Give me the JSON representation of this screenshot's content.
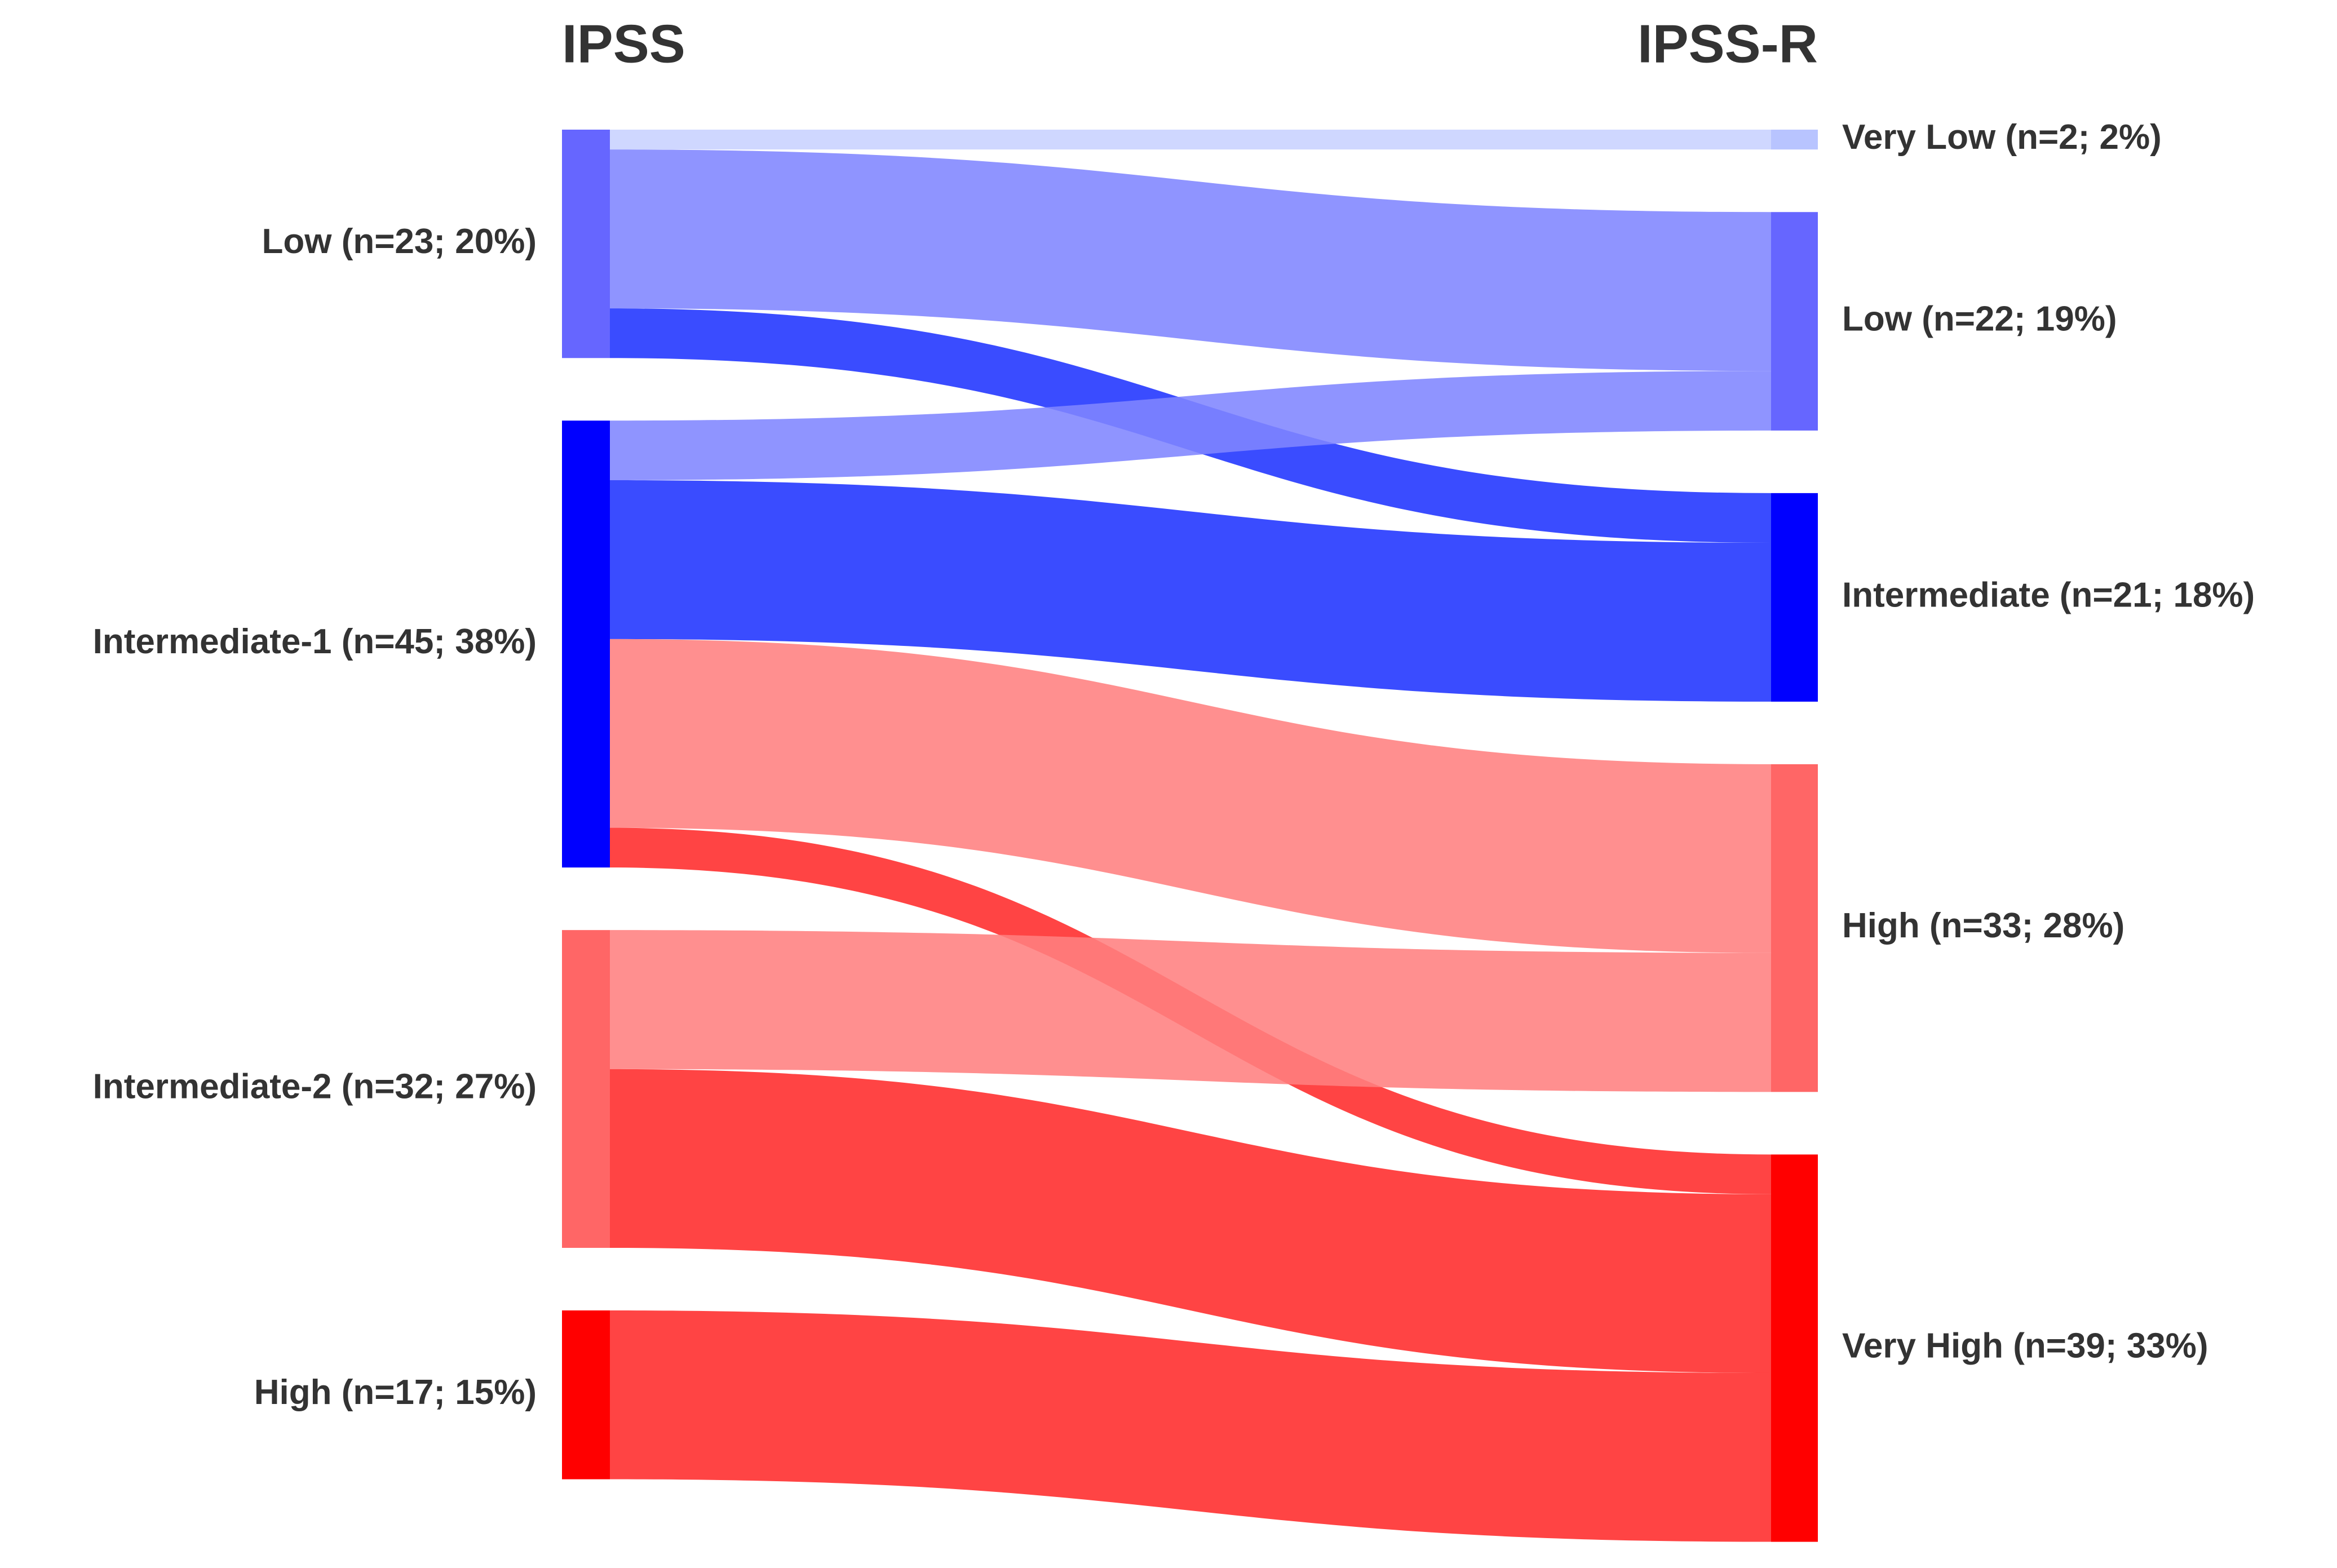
{
  "chart_data": {
    "type": "sankey",
    "left_title": "IPSS",
    "right_title": "IPSS-R",
    "left_nodes": [
      {
        "label": "Low (n=23; 20%)",
        "color": "#6666ff"
      },
      {
        "label": "Intermediate-1 (n=45; 38%)",
        "color": "#0000ff"
      },
      {
        "label": "Intermediate-2 (n=32; 27%)",
        "color": "#ff6666"
      },
      {
        "label": "High (n=17; 15%)",
        "color": "#ff0000"
      }
    ],
    "right_nodes": [
      {
        "label": "Very Low (n=2; 2%)",
        "color": "#b8c4ff",
        "link_color": "#c8d2ff"
      },
      {
        "label": "Low (n=22; 19%)",
        "color": "#6666ff",
        "link_color": "#8085ff"
      },
      {
        "label": "Intermediate (n=21; 18%)",
        "color": "#0000ff",
        "link_color": "#1f33ff"
      },
      {
        "label": "High (n=33; 28%)",
        "color": "#ff6666",
        "link_color": "#ff7f7f"
      },
      {
        "label": "Very High (n=39; 33%)",
        "color": "#ff0000",
        "link_color": "#ff2a2a"
      }
    ],
    "links": [
      {
        "source": 0,
        "target": 0,
        "value": 2
      },
      {
        "source": 0,
        "target": 1,
        "value": 16
      },
      {
        "source": 0,
        "target": 2,
        "value": 5
      },
      {
        "source": 1,
        "target": 1,
        "value": 6
      },
      {
        "source": 1,
        "target": 2,
        "value": 16
      },
      {
        "source": 1,
        "target": 3,
        "value": 19
      },
      {
        "source": 1,
        "target": 4,
        "value": 4
      },
      {
        "source": 2,
        "target": 3,
        "value": 14
      },
      {
        "source": 2,
        "target": 4,
        "value": 18
      },
      {
        "source": 3,
        "target": 4,
        "value": 17
      }
    ]
  }
}
